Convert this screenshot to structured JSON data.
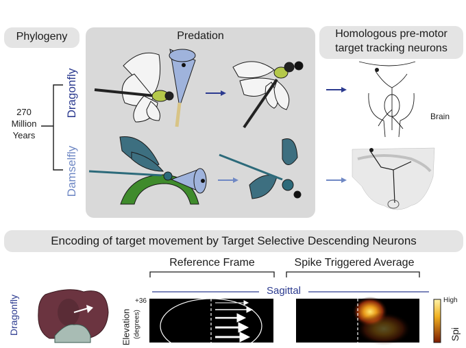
{
  "top": {
    "phylogeny": "Phylogeny",
    "predation": "Predation",
    "neurons_title_1": "Homologous pre-motor",
    "neurons_title_2": "target tracking neurons",
    "dragonfly": "Dragonfly",
    "damselfly": "Damselfly",
    "time_1": "270",
    "time_2": "Million",
    "time_3": "Years",
    "brain": "Brain"
  },
  "bottom": {
    "title": "Encoding of target movement by Target Selective Descending Neurons",
    "reference_frame": "Reference Frame",
    "spike_triggered_average": "Spike Triggered Average",
    "sagittal": "Sagittal",
    "dragonfly": "Dragonfly",
    "elevation": "Elevation",
    "degrees": "(degrees)",
    "elev_max": "+36",
    "colorbar_high": "High",
    "colorbar_label_partial": "Spi"
  },
  "colors": {
    "pill_bg": "#e4e4e4",
    "predation_bg": "#d9d9d9",
    "dragonfly_blue": "#2b3a8f",
    "damselfly_blue": "#6f88c4",
    "cone_fill": "#9fb3dc",
    "leaf_green": "#3f8b2c",
    "brain_maroon": "#6b3440",
    "heat_core": "#ffd84a"
  }
}
